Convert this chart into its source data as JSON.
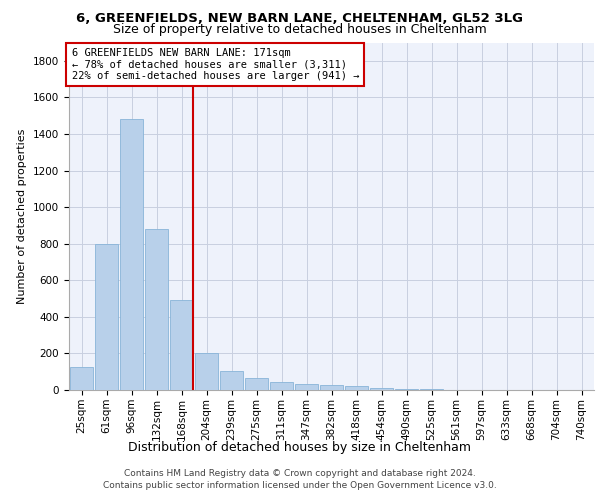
{
  "title1": "6, GREENFIELDS, NEW BARN LANE, CHELTENHAM, GL52 3LG",
  "title2": "Size of property relative to detached houses in Cheltenham",
  "xlabel": "Distribution of detached houses by size in Cheltenham",
  "ylabel": "Number of detached properties",
  "bar_labels": [
    "25sqm",
    "61sqm",
    "96sqm",
    "132sqm",
    "168sqm",
    "204sqm",
    "239sqm",
    "275sqm",
    "311sqm",
    "347sqm",
    "382sqm",
    "418sqm",
    "454sqm",
    "490sqm",
    "525sqm",
    "561sqm",
    "597sqm",
    "633sqm",
    "668sqm",
    "704sqm",
    "740sqm"
  ],
  "bar_values": [
    125,
    800,
    1480,
    880,
    490,
    205,
    105,
    65,
    45,
    35,
    25,
    20,
    10,
    5,
    3,
    2,
    2,
    2,
    2,
    1,
    2
  ],
  "bar_color": "#b8d0ea",
  "bar_edgecolor": "#89b4d8",
  "vline_color": "#cc0000",
  "vline_index": 4,
  "annotation_title": "6 GREENFIELDS NEW BARN LANE: 171sqm",
  "annotation_line1": "← 78% of detached houses are smaller (3,311)",
  "annotation_line2": "22% of semi-detached houses are larger (941) →",
  "annotation_box_facecolor": "#ffffff",
  "annotation_box_edgecolor": "#cc0000",
  "footer1": "Contains HM Land Registry data © Crown copyright and database right 2024.",
  "footer2": "Contains public sector information licensed under the Open Government Licence v3.0.",
  "ylim": [
    0,
    1900
  ],
  "yticks": [
    0,
    200,
    400,
    600,
    800,
    1000,
    1200,
    1400,
    1600,
    1800
  ],
  "bg_color": "#eef2fb",
  "grid_color": "#c8cfe0",
  "title1_fontsize": 9.5,
  "title2_fontsize": 9,
  "ylabel_fontsize": 8,
  "xlabel_fontsize": 9,
  "tick_fontsize": 7.5,
  "ann_fontsize": 7.5,
  "footer_fontsize": 6.5
}
